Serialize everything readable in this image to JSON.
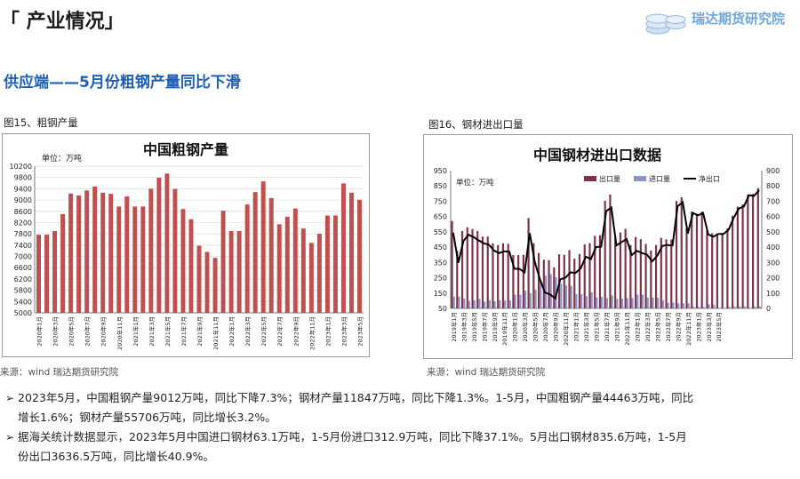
{
  "header": {
    "section_title": "「 产业情况」",
    "logo_text": "瑞达期货研究院"
  },
  "subtitle": "供应端——5月份粗钢产量同比下滑",
  "fig15": {
    "caption": "图15、粗钢产量",
    "source": "来源：wind   瑞达期货研究院"
  },
  "fig16": {
    "caption": "图16、钢材进出口量",
    "source": "来源：wind   瑞达期货研究院"
  },
  "bullets": [
    {
      "mark": "➢",
      "text": "2023年5月，中国粗钢产量9012万吨，同比下降7.3%；钢材产量11847万吨，同比下降1.3%。1-5月，中国粗钢产量44463万吨，同比"
    },
    {
      "mark": "",
      "text": "增长1.6%；钢材产量55706万吨，同比增长3.2%。"
    },
    {
      "mark": "➢",
      "text": "据海关统计数据显示，2023年5月中国进口钢材63.1万吨，1-5月份进口312.9万吨，同比下降37.1%。5月出口钢材835.6万吨，1-5月"
    },
    {
      "mark": "",
      "text": "份出口3636.5万吨，同比增长40.9%。"
    }
  ],
  "chart_data": [
    {
      "type": "bar",
      "title": "中国粗钢产量",
      "unit_label": "单位：万吨",
      "color": "#c0504d",
      "ylim": [
        5000,
        10200
      ],
      "yticks": [
        5000,
        5400,
        5800,
        6200,
        6600,
        7000,
        7400,
        7800,
        8200,
        8600,
        9000,
        9400,
        9800,
        10200
      ],
      "ytick_labels": [
        "5000",
        "5400",
        "5800",
        "6200",
        "6600",
        "7000",
        "7400",
        "7800",
        "8200",
        "8600",
        "9000",
        "9400",
        "9800",
        "10200"
      ],
      "grid": true,
      "categories": [
        "2020年1月",
        "2020年2月",
        "2020年3月",
        "2020年4月",
        "2020年5月",
        "2020年6月",
        "2020年7月",
        "2020年8月",
        "2020年9月",
        "2020年10月",
        "2020年11月",
        "2020年12月",
        "2021年1月",
        "2021年2月",
        "2021年3月",
        "2021年4月",
        "2021年5月",
        "2021年6月",
        "2021年7月",
        "2021年8月",
        "2021年9月",
        "2021年10月",
        "2021年11月",
        "2021年12月",
        "2022年1月",
        "2022年2月",
        "2022年3月",
        "2022年4月",
        "2022年5月",
        "2022年6月",
        "2022年7月",
        "2022年8月",
        "2022年9月",
        "2022年10月",
        "2022年11月",
        "2022年12月",
        "2023年1月",
        "2023年2月",
        "2023年3月",
        "2023年4月",
        "2023年5月"
      ],
      "xtick_labels": [
        "2020年1月",
        "",
        "2020年3月",
        "",
        "2020年5月",
        "",
        "2020年7月",
        "",
        "2020年9月",
        "",
        "2020年11月",
        "",
        "2021年1月",
        "",
        "2021年3月",
        "",
        "2021年5月",
        "",
        "2021年7月",
        "",
        "2021年9月",
        "",
        "2021年11月",
        "",
        "2022年1月",
        "",
        "2022年3月",
        "",
        "2022年5月",
        "",
        "2022年7月",
        "",
        "2022年9月",
        "",
        "2022年11月",
        "",
        "2023年1月",
        "",
        "2023年3月",
        "",
        "2023年5月"
      ],
      "values": [
        7770,
        7770,
        7900,
        8500,
        9230,
        9160,
        9340,
        9480,
        9260,
        9220,
        8770,
        9130,
        8770,
        8770,
        9400,
        9790,
        9940,
        9390,
        8680,
        8320,
        7380,
        7160,
        6950,
        8620,
        7900,
        7900,
        8840,
        9280,
        9660,
        9070,
        8140,
        8410,
        8700,
        7990,
        7480,
        7800,
        8450,
        8450,
        9590,
        9260,
        9010
      ]
    },
    {
      "type": "bar",
      "title": "中国钢材进出口数据",
      "unit_label": "单位：万吨",
      "ylim": [
        50,
        950
      ],
      "yticks": [
        50,
        150,
        250,
        350,
        450,
        550,
        650,
        750,
        850,
        950
      ],
      "ytick_labels": [
        "50",
        "150",
        "250",
        "350",
        "450",
        "550",
        "650",
        "750",
        "850",
        "950"
      ],
      "y2lim": [
        0,
        900
      ],
      "y2ticks": [
        0,
        100,
        200,
        300,
        400,
        500,
        600,
        700,
        800,
        900
      ],
      "y2tick_labels": [
        "0",
        "100",
        "200",
        "300",
        "400",
        "500",
        "600",
        "700",
        "800",
        "900"
      ],
      "legend": [
        "出口量",
        "进口量",
        "净出口"
      ],
      "legend_position": "top",
      "colors": {
        "export": "#7b3448",
        "import": "#8b93c9",
        "net": "#000000"
      },
      "xtick_labels": [
        "2019年1月",
        "2019年3月",
        "2019年5月",
        "2019年7月",
        "2019年9月",
        "2019年11月",
        "2020年1月",
        "2020年3月",
        "2020年5月",
        "2020年7月",
        "2020年9月",
        "2020年11月",
        "2021年1月",
        "2021年3月",
        "2021年5月",
        "2021年7月",
        "2021年9月",
        "2021年11月",
        "2022年1月",
        "2022年3月",
        "2022年5月",
        "2022年7月",
        "2022年9月",
        "2022年11月",
        "2023年1月",
        "2023年3月",
        "2023年5月"
      ],
      "series": [
        {
          "name": "出口量",
          "kind": "bar",
          "axis": "left",
          "values": [
            621,
            425,
            555,
            580,
            568,
            556,
            519,
            519,
            475,
            464,
            475,
            472,
            399,
            398,
            400,
            641,
            476,
            412,
            368,
            365,
            318,
            403,
            400,
            431,
            375,
            405,
            468,
            476,
            524,
            528,
            753,
            794,
            523,
            546,
            570,
            465,
            516,
            502,
            471,
            427,
            464,
            511,
            501,
            500,
            752,
            776,
            572,
            683,
            668,
            682,
            559,
            541,
            539,
            539,
            573,
            655,
            715,
            729,
            794,
            798,
            836
          ]
        },
        {
          "name": "进口量",
          "kind": "bar",
          "axis": "left",
          "values": [
            127,
            127,
            115,
            99,
            102,
            112,
            94,
            103,
            97,
            103,
            102,
            102,
            140,
            140,
            165,
            150,
            173,
            222,
            265,
            274,
            253,
            213,
            200,
            196,
            143,
            143,
            130,
            154,
            123,
            125,
            118,
            135,
            112,
            113,
            117,
            117,
            140,
            140,
            120,
            120,
            120,
            103,
            87,
            89,
            84,
            83,
            83,
            60,
            60,
            59,
            76,
            73,
            53,
            53,
            59,
            63,
            63,
            63,
            55,
            63,
            63
          ]
        },
        {
          "name": "净出口",
          "kind": "line",
          "axis": "right",
          "values": [
            494,
            298,
            440,
            481,
            466,
            444,
            425,
            416,
            378,
            361,
            373,
            370,
            259,
            258,
            235,
            491,
            303,
            190,
            103,
            91,
            65,
            190,
            200,
            235,
            232,
            262,
            338,
            322,
            401,
            403,
            635,
            659,
            411,
            433,
            453,
            348,
            376,
            362,
            351,
            307,
            344,
            408,
            414,
            411,
            668,
            693,
            489,
            623,
            608,
            623,
            483,
            468,
            486,
            486,
            514,
            592,
            652,
            666,
            739,
            735,
            773
          ]
        }
      ]
    }
  ]
}
